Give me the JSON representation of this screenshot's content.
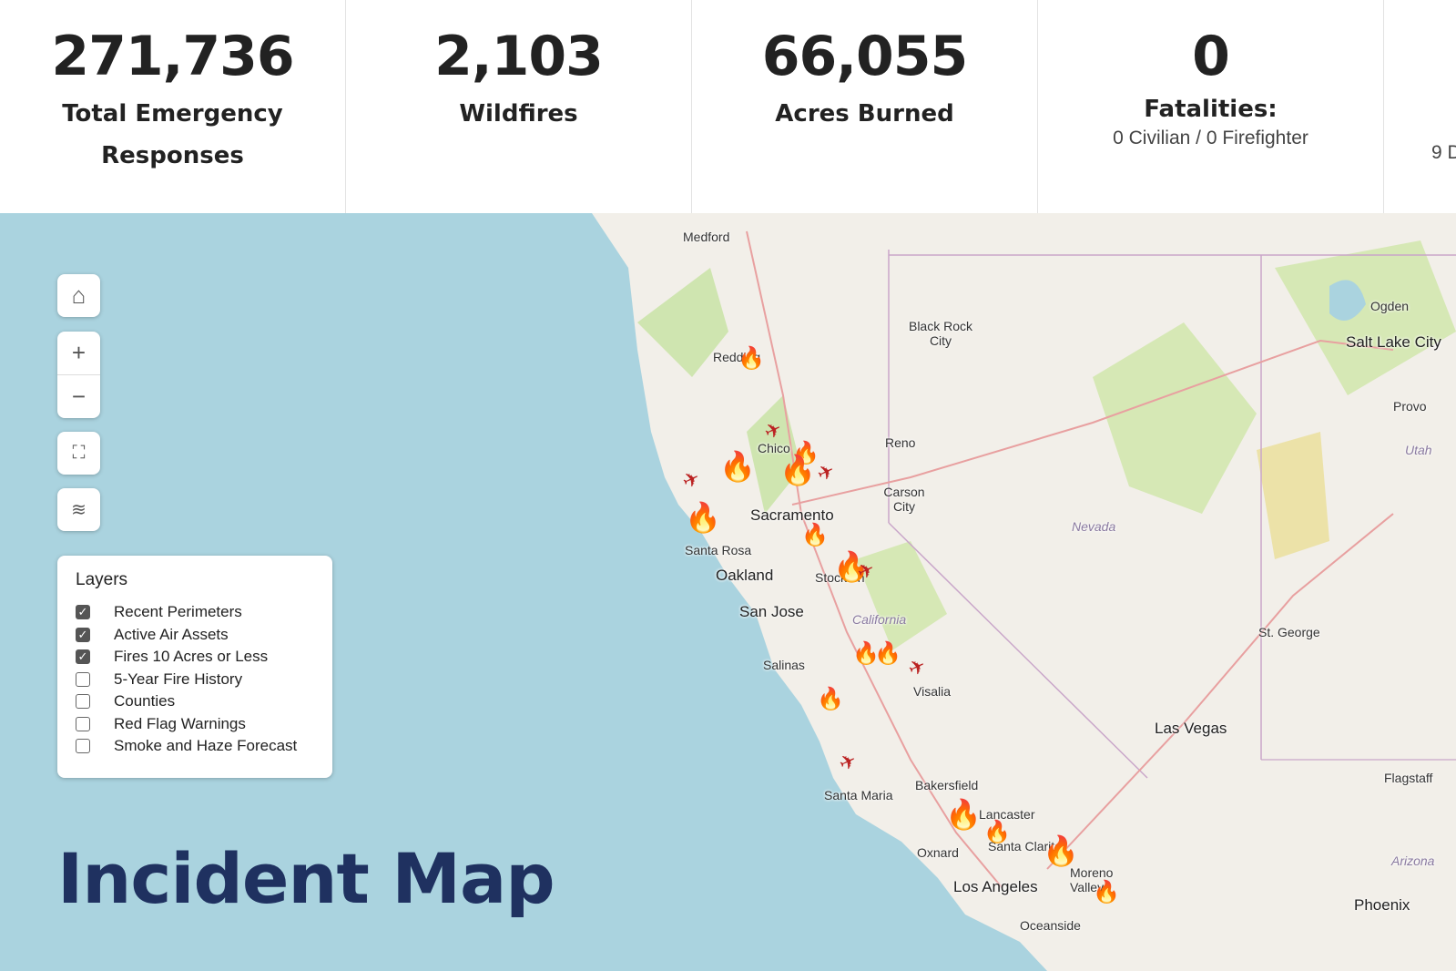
{
  "stats": [
    {
      "value": "271,736",
      "label": "Total Emergency Responses",
      "sub": ""
    },
    {
      "value": "2,103",
      "label": "Wildfires",
      "sub": ""
    },
    {
      "value": "66,055",
      "label": "Acres Burned",
      "sub": ""
    },
    {
      "value": "0",
      "label": "Fatalities:",
      "sub": "0 Civilian / 0 Firefighter"
    },
    {
      "value": "",
      "label": "",
      "sub": "9 D"
    }
  ],
  "map": {
    "title": "Incident Map",
    "controls": {
      "home": "home-icon",
      "zoom_in": "+",
      "zoom_out": "−",
      "fullscreen": "fullscreen-icon",
      "layers": "layers-icon"
    },
    "place_labels": [
      "Medford",
      "Black Rock City",
      "Ogden",
      "Salt Lake City",
      "Provo",
      "Utah",
      "Redding",
      "Chico",
      "Reno",
      "Carson City",
      "Sacramento",
      "Nevada",
      "Santa Rosa",
      "Oakland",
      "San Jose",
      "California",
      "St. George",
      "Salinas",
      "Visalia",
      "Las Vegas",
      "Bakersfield",
      "Flagstaff",
      "Santa Maria",
      "Lancaster",
      "Oxnard",
      "Santa Clarita",
      "Moreno Valley",
      "Los Angeles",
      "Arizona",
      "Phoenix",
      "Oceanside",
      "Stockton"
    ],
    "colors": {
      "water": "#aad3df",
      "land": "#f2efe9",
      "fire": "#c8102e",
      "title": "#1f3160"
    }
  },
  "layers": {
    "heading": "Layers",
    "items": [
      {
        "label": "Recent Perimeters",
        "checked": true
      },
      {
        "label": "Active Air Assets",
        "checked": true
      },
      {
        "label": "Fires 10 Acres or Less",
        "checked": true
      },
      {
        "label": "5-Year Fire History",
        "checked": false
      },
      {
        "label": "Counties",
        "checked": false
      },
      {
        "label": "Red Flag Warnings",
        "checked": false
      },
      {
        "label": "Smoke and Haze Forecast",
        "checked": false
      }
    ]
  }
}
